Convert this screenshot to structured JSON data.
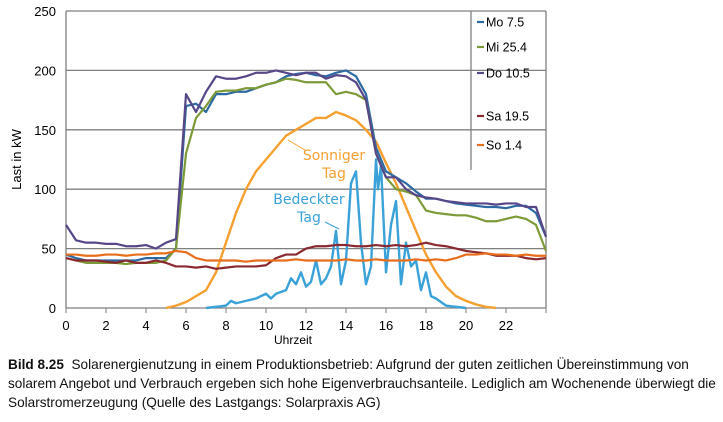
{
  "chart_data": {
    "type": "line",
    "title": "",
    "xlabel": "Uhrzeit",
    "ylabel": "Last in kW",
    "xlim": [
      0,
      24
    ],
    "ylim": [
      0,
      250
    ],
    "xticks": [
      "0",
      "2",
      "4",
      "6",
      "8",
      "10",
      "12",
      "14",
      "16",
      "18",
      "20",
      "22"
    ],
    "yticks": [
      "0",
      "50",
      "100",
      "150",
      "200",
      "250"
    ],
    "grid": "horizontal",
    "legend_position": "top-right",
    "x_step_hours": 0.5,
    "series": [
      {
        "name": "Mo 7.5",
        "color": "#2d6aa3",
        "values": [
          45,
          42,
          40,
          40,
          40,
          40,
          40,
          40,
          42,
          42,
          42,
          50,
          170,
          172,
          165,
          180,
          180,
          182,
          182,
          185,
          188,
          190,
          195,
          197,
          198,
          196,
          195,
          198,
          200,
          195,
          180,
          135,
          115,
          110,
          105,
          98,
          92,
          92,
          90,
          88,
          87,
          86,
          85,
          85,
          84,
          86,
          86,
          80,
          60
        ]
      },
      {
        "name": "Mi 25.4",
        "color": "#7d9a38",
        "values": [
          42,
          40,
          38,
          38,
          38,
          38,
          37,
          38,
          38,
          38,
          40,
          50,
          130,
          160,
          170,
          182,
          183,
          183,
          185,
          185,
          188,
          190,
          193,
          192,
          190,
          190,
          190,
          180,
          182,
          180,
          175,
          130,
          110,
          100,
          98,
          95,
          82,
          80,
          79,
          78,
          78,
          76,
          73,
          73,
          75,
          77,
          75,
          70,
          48
        ]
      },
      {
        "name": "Do 10.5",
        "color": "#574788",
        "values": [
          70,
          57,
          55,
          55,
          54,
          54,
          52,
          52,
          53,
          50,
          55,
          58,
          180,
          165,
          182,
          195,
          193,
          193,
          195,
          198,
          198,
          200,
          198,
          196,
          198,
          198,
          193,
          196,
          195,
          190,
          175,
          130,
          110,
          110,
          100,
          95,
          93,
          92,
          90,
          89,
          88,
          88,
          88,
          87,
          88,
          88,
          85,
          85,
          60
        ]
      },
      {
        "name": "Sa 19.5",
        "color": "#8a2830",
        "values": [
          42,
          40,
          40,
          40,
          39,
          38,
          40,
          38,
          38,
          40,
          38,
          35,
          35,
          34,
          35,
          33,
          34,
          35,
          35,
          35,
          36,
          42,
          45,
          45,
          50,
          52,
          52,
          53,
          53,
          52,
          52,
          53,
          52,
          53,
          52,
          53,
          55,
          53,
          52,
          50,
          48,
          47,
          46,
          44,
          44,
          44,
          42,
          41,
          42
        ]
      },
      {
        "name": "So 1.4",
        "color": "#e86e1c",
        "values": [
          45,
          45,
          44,
          44,
          45,
          45,
          44,
          45,
          45,
          46,
          46,
          48,
          47,
          42,
          40,
          40,
          40,
          40,
          39,
          40,
          40,
          40,
          40,
          41,
          40,
          40,
          40,
          40,
          41,
          40,
          40,
          41,
          40,
          40,
          40,
          41,
          40,
          41,
          40,
          42,
          45,
          45,
          46,
          45,
          45,
          44,
          45,
          44,
          44
        ]
      }
    ],
    "annotated_series": [
      {
        "name": "Sonniger Tag",
        "label_lines": [
          "Sonniger",
          "Tag"
        ],
        "color": "#f5a030",
        "points": [
          [
            5,
            0
          ],
          [
            5.5,
            2
          ],
          [
            6,
            5
          ],
          [
            6.5,
            10
          ],
          [
            7,
            15
          ],
          [
            7.5,
            30
          ],
          [
            8,
            55
          ],
          [
            8.5,
            80
          ],
          [
            9,
            100
          ],
          [
            9.5,
            115
          ],
          [
            10,
            125
          ],
          [
            10.5,
            135
          ],
          [
            11,
            145
          ],
          [
            11.5,
            150
          ],
          [
            12,
            155
          ],
          [
            12.5,
            160
          ],
          [
            13,
            160
          ],
          [
            13.5,
            165
          ],
          [
            14,
            162
          ],
          [
            14.5,
            158
          ],
          [
            15,
            150
          ],
          [
            15.5,
            140
          ],
          [
            16,
            122
          ],
          [
            16.5,
            105
          ],
          [
            17,
            85
          ],
          [
            17.5,
            65
          ],
          [
            18,
            45
          ],
          [
            18.5,
            30
          ],
          [
            19,
            18
          ],
          [
            19.5,
            10
          ],
          [
            20,
            6
          ],
          [
            20.5,
            3
          ],
          [
            21,
            1
          ],
          [
            21.5,
            0
          ]
        ]
      },
      {
        "name": "Bedeckter Tag",
        "label_lines": [
          "Bedeckter",
          "Tag"
        ],
        "color": "#3aa2d8",
        "points": [
          [
            7,
            0
          ],
          [
            7.5,
            1
          ],
          [
            8,
            2
          ],
          [
            8.25,
            6
          ],
          [
            8.5,
            4
          ],
          [
            9,
            6
          ],
          [
            9.5,
            8
          ],
          [
            10,
            12
          ],
          [
            10.25,
            8
          ],
          [
            10.5,
            12
          ],
          [
            11,
            15
          ],
          [
            11.25,
            25
          ],
          [
            11.5,
            20
          ],
          [
            11.75,
            30
          ],
          [
            12,
            18
          ],
          [
            12.25,
            22
          ],
          [
            12.5,
            40
          ],
          [
            12.75,
            20
          ],
          [
            13,
            25
          ],
          [
            13.25,
            35
          ],
          [
            13.5,
            65
          ],
          [
            13.75,
            20
          ],
          [
            14,
            40
          ],
          [
            14.25,
            105
          ],
          [
            14.5,
            115
          ],
          [
            14.75,
            55
          ],
          [
            15,
            20
          ],
          [
            15.25,
            35
          ],
          [
            15.5,
            125
          ],
          [
            15.6,
            100
          ],
          [
            15.75,
            120
          ],
          [
            16,
            30
          ],
          [
            16.25,
            70
          ],
          [
            16.5,
            90
          ],
          [
            16.75,
            20
          ],
          [
            17,
            55
          ],
          [
            17.25,
            35
          ],
          [
            17.5,
            40
          ],
          [
            17.75,
            15
          ],
          [
            18,
            30
          ],
          [
            18.25,
            10
          ],
          [
            18.5,
            8
          ],
          [
            19,
            2
          ],
          [
            19.5,
            1
          ],
          [
            20,
            0
          ]
        ]
      }
    ]
  },
  "caption": {
    "label": "Bild 8.25",
    "text": "Solarenergienutzung in einem Produktionsbetrieb: Aufgrund der guten zeitlichen Übereinstimmung von solarem Angebot und Verbrauch ergeben sich hohe Eigenverbrauchsanteile. Lediglich am Wochenende überwiegt die Solarstromerzeugung (Quelle des Lastgangs: Solarpraxis AG)"
  }
}
